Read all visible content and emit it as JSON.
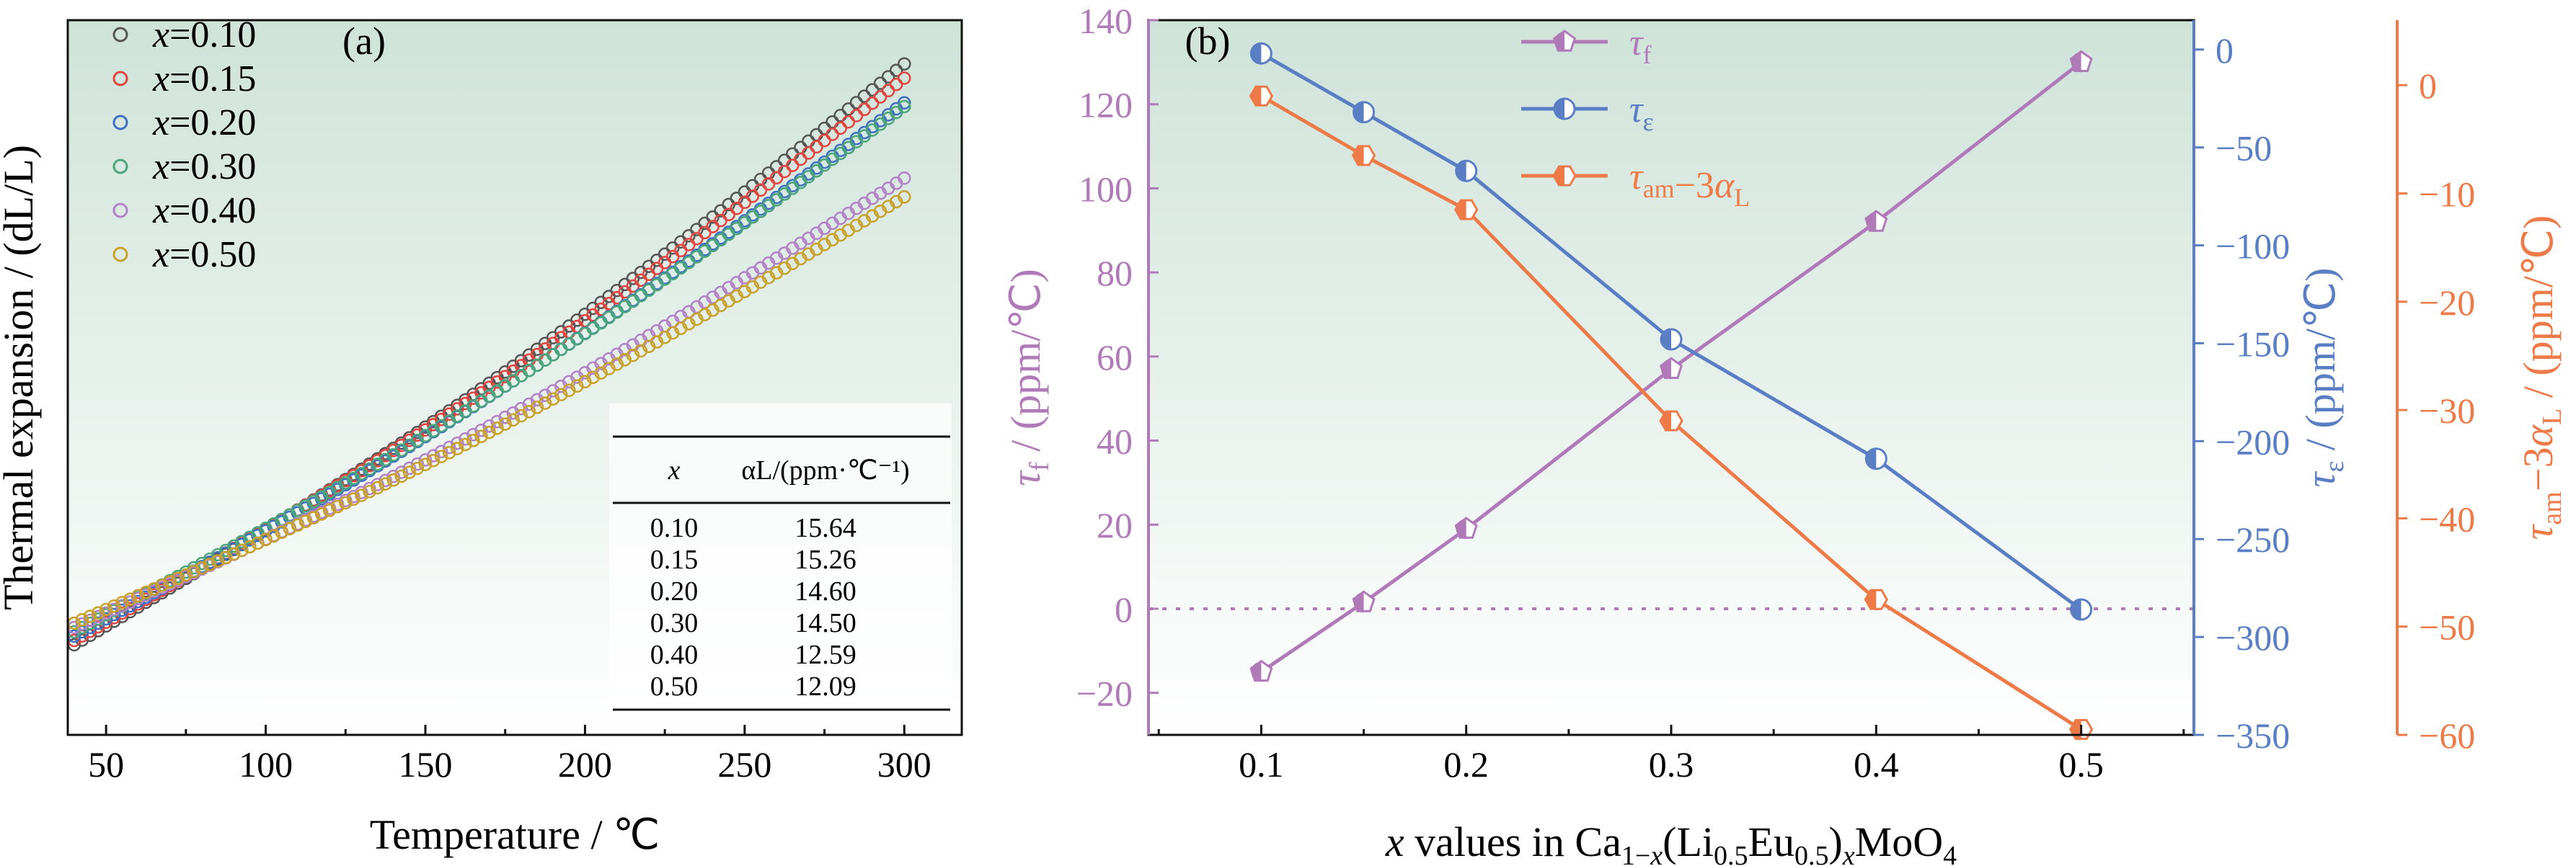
{
  "colors": {
    "panel_bg_top": "#cfe3d9",
    "panel_bg_bottom": "#ffffff",
    "tau_f": "#b07ab8",
    "tau_e": "#5a7ec4",
    "tau_am": "#ee7a47",
    "series_a": [
      "#555555",
      "#e0463f",
      "#3f6fc4",
      "#4aa57a",
      "#b282c6",
      "#c8a12a"
    ]
  },
  "chart_data": [
    {
      "panel": "(a)",
      "type": "scatter",
      "xlabel": "Temperature / ℃",
      "ylabel": "Thermal expansion / (dL/L)",
      "xlim": [
        38,
        318
      ],
      "ylim": [
        0,
        1
      ],
      "xticks": [
        50,
        100,
        150,
        200,
        250,
        300
      ],
      "xtick_labels": [
        "50",
        "100",
        "150",
        "200",
        "250",
        "300"
      ],
      "yticks_labelled": false,
      "legend_prefix": "x",
      "legend_position": "top-left",
      "series": [
        {
          "name": "=0.10",
          "slope": 15.64
        },
        {
          "name": "=0.15",
          "slope": 15.26
        },
        {
          "name": "=0.20",
          "slope": 14.6
        },
        {
          "name": "=0.30",
          "slope": 14.5
        },
        {
          "name": "=0.40",
          "slope": 12.59
        },
        {
          "name": "=0.50",
          "slope": 12.09
        }
      ],
      "table": {
        "headers": [
          "x",
          "αL/(ppm·℃⁻¹)"
        ],
        "rows": [
          [
            "0.10",
            "15.64"
          ],
          [
            "0.15",
            "15.26"
          ],
          [
            "0.20",
            "14.60"
          ],
          [
            "0.30",
            "14.50"
          ],
          [
            "0.40",
            "12.59"
          ],
          [
            "0.50",
            "12.09"
          ]
        ]
      }
    },
    {
      "panel": "(b)",
      "type": "line",
      "x": [
        0.1,
        0.15,
        0.2,
        0.3,
        0.4,
        0.5
      ],
      "xlim": [
        0.045,
        0.555
      ],
      "xticks": [
        0.1,
        0.2,
        0.3,
        0.4,
        0.5
      ],
      "xtick_labels": [
        "0.1",
        "0.2",
        "0.3",
        "0.4",
        "0.5"
      ],
      "xlabel": "x values in Ca1−x(Li0.5Eu0.5)xMoO4",
      "zero_reference_line": 0,
      "legend_position": "top-center",
      "axes": [
        {
          "id": "tau_f",
          "side": "left",
          "label": "τf / (ppm/℃)",
          "ylim": [
            -30,
            140
          ],
          "ticks": [
            -20,
            0,
            20,
            40,
            60,
            80,
            100,
            120,
            140
          ],
          "tick_labels": [
            "−20",
            "0",
            "20",
            "40",
            "60",
            "80",
            "100",
            "120",
            "140"
          ]
        },
        {
          "id": "tau_e",
          "side": "right",
          "label": "τε / (ppm/℃)",
          "ylim": [
            -350,
            15
          ],
          "ticks": [
            0,
            -50,
            -100,
            -150,
            -200,
            -250,
            -300,
            -350
          ],
          "tick_labels": [
            "0",
            "−50",
            "−100",
            "−150",
            "−200",
            "−250",
            "−300",
            "−350"
          ]
        },
        {
          "id": "tau_am",
          "side": "far-right",
          "label": "τam−3αL / (ppm/℃)",
          "ylim": [
            -60,
            6
          ],
          "ticks": [
            0,
            -10,
            -20,
            -30,
            -40,
            -50,
            -60
          ],
          "tick_labels": [
            "0",
            "−10",
            "−20",
            "−30",
            "−40",
            "−50",
            "−60"
          ]
        }
      ],
      "series": [
        {
          "name": "τf",
          "axis": "tau_f",
          "marker": "pentagon",
          "values": [
            -15,
            1.5,
            19,
            57,
            92,
            130
          ]
        },
        {
          "name": "τε",
          "axis": "tau_e",
          "marker": "circle",
          "values": [
            -2,
            -32,
            -62,
            -148,
            -209,
            -286
          ]
        },
        {
          "name": "τam−3αL",
          "axis": "tau_am",
          "marker": "hexagon",
          "values": [
            -1,
            -6.5,
            -11.5,
            -31,
            -47.5,
            -59.5
          ]
        }
      ]
    }
  ]
}
